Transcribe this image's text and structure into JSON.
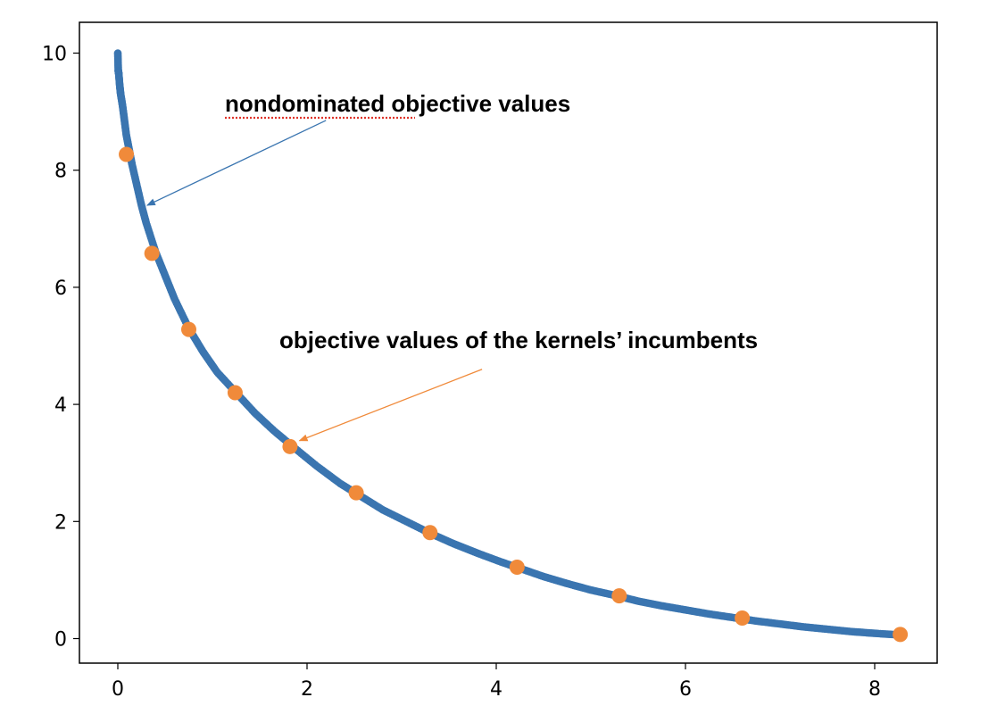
{
  "chart_data": {
    "type": "scatter",
    "title": "",
    "xlabel": "",
    "ylabel": "",
    "xlim": [
      -0.4,
      8.7
    ],
    "ylim": [
      -0.4,
      10.6
    ],
    "x_ticks": [
      0,
      2,
      4,
      6,
      8
    ],
    "y_ticks": [
      0,
      2,
      4,
      6,
      8,
      10
    ],
    "grid": false,
    "series": [
      {
        "color": "#3a75b0",
        "marker": "small-dot",
        "description_curve": "y = (1 - sqrt(x / 8.33)) ^ 2 * 10, dense sampling from x=0 to x=8.28",
        "points": [
          [
            0.0,
            10.0
          ],
          [
            0.005,
            9.7
          ],
          [
            0.01,
            9.65
          ],
          [
            0.02,
            9.45
          ],
          [
            0.03,
            9.3
          ],
          [
            0.05,
            9.1
          ],
          [
            0.07,
            8.85
          ],
          [
            0.09,
            8.6
          ],
          [
            0.12,
            8.35
          ],
          [
            0.15,
            8.1
          ],
          [
            0.2,
            7.75
          ],
          [
            0.25,
            7.4
          ],
          [
            0.3,
            7.1
          ],
          [
            0.4,
            6.6
          ],
          [
            0.5,
            6.2
          ],
          [
            0.6,
            5.8
          ],
          [
            0.75,
            5.3
          ],
          [
            0.9,
            4.9
          ],
          [
            1.05,
            4.55
          ],
          [
            1.25,
            4.2
          ],
          [
            1.45,
            3.85
          ],
          [
            1.65,
            3.55
          ],
          [
            1.85,
            3.28
          ],
          [
            2.1,
            2.95
          ],
          [
            2.35,
            2.65
          ],
          [
            2.55,
            2.45
          ],
          [
            2.8,
            2.2
          ],
          [
            3.05,
            2.0
          ],
          [
            3.3,
            1.8
          ],
          [
            3.55,
            1.62
          ],
          [
            3.8,
            1.46
          ],
          [
            4.05,
            1.31
          ],
          [
            4.25,
            1.2
          ],
          [
            4.5,
            1.06
          ],
          [
            4.75,
            0.94
          ],
          [
            5.0,
            0.83
          ],
          [
            5.25,
            0.74
          ],
          [
            5.5,
            0.64
          ],
          [
            5.75,
            0.56
          ],
          [
            6.0,
            0.49
          ],
          [
            6.25,
            0.42
          ],
          [
            6.5,
            0.36
          ],
          [
            6.75,
            0.3
          ],
          [
            7.0,
            0.25
          ],
          [
            7.25,
            0.2
          ],
          [
            7.5,
            0.16
          ],
          [
            7.75,
            0.12
          ],
          [
            8.0,
            0.09
          ],
          [
            8.28,
            0.06
          ]
        ]
      },
      {
        "color": "#f08a3a",
        "marker": "large-dot",
        "points": [
          [
            0.09,
            8.27
          ],
          [
            0.36,
            6.58
          ],
          [
            0.75,
            5.28
          ],
          [
            1.24,
            4.2
          ],
          [
            1.82,
            3.28
          ],
          [
            2.52,
            2.49
          ],
          [
            3.3,
            1.81
          ],
          [
            4.22,
            1.22
          ],
          [
            5.3,
            0.73
          ],
          [
            6.6,
            0.35
          ],
          [
            8.27,
            0.07
          ]
        ]
      }
    ],
    "annotations": [
      {
        "text_parts": [
          "nondominated",
          " objective values"
        ],
        "color": "#3a75b0",
        "arrow_from": [
          2.2,
          8.85
        ],
        "arrow_to": [
          0.31,
          7.4
        ]
      },
      {
        "text_parts": [
          "objective values of the kernels’ incumbents"
        ],
        "color": "#f08a3a",
        "arrow_from": [
          3.85,
          4.6
        ],
        "arrow_to": [
          1.92,
          3.38
        ]
      }
    ]
  }
}
